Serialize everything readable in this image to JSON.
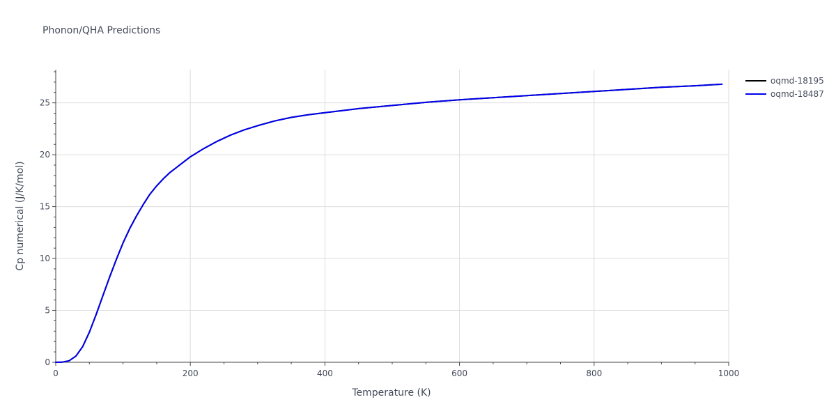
{
  "chart_data": {
    "type": "line",
    "title": "Phonon/QHA Predictions",
    "xlabel": "Temperature (K)",
    "ylabel": "Cp numerical (J/K/mol)",
    "xlim": [
      0,
      1000
    ],
    "ylim": [
      0,
      28.2
    ],
    "xticks": [
      0,
      200,
      400,
      600,
      800,
      1000
    ],
    "yticks": [
      0,
      5,
      10,
      15,
      20,
      25
    ],
    "grid": true,
    "legend_position": "top-right",
    "x": [
      0,
      10,
      20,
      30,
      40,
      50,
      60,
      70,
      80,
      90,
      100,
      110,
      120,
      130,
      140,
      150,
      160,
      170,
      180,
      190,
      200,
      220,
      240,
      260,
      280,
      300,
      325,
      350,
      375,
      400,
      450,
      500,
      550,
      600,
      650,
      700,
      750,
      800,
      850,
      900,
      950,
      990
    ],
    "series": [
      {
        "name": "oqmd-18195",
        "color": "#000000",
        "values": [
          0,
          0.02,
          0.15,
          0.6,
          1.5,
          2.9,
          4.6,
          6.4,
          8.2,
          9.9,
          11.5,
          12.9,
          14.1,
          15.2,
          16.2,
          17.0,
          17.7,
          18.3,
          18.8,
          19.3,
          19.8,
          20.6,
          21.3,
          21.9,
          22.4,
          22.8,
          23.25,
          23.6,
          23.85,
          24.05,
          24.45,
          24.75,
          25.05,
          25.3,
          25.5,
          25.7,
          25.9,
          26.1,
          26.3,
          26.5,
          26.65,
          26.8
        ]
      },
      {
        "name": "oqmd-18487",
        "color": "#0000ee",
        "values": [
          0,
          0.02,
          0.15,
          0.6,
          1.5,
          2.9,
          4.6,
          6.4,
          8.2,
          9.9,
          11.5,
          12.9,
          14.1,
          15.2,
          16.2,
          17.0,
          17.7,
          18.3,
          18.8,
          19.3,
          19.8,
          20.6,
          21.3,
          21.9,
          22.4,
          22.8,
          23.25,
          23.6,
          23.85,
          24.05,
          24.45,
          24.75,
          25.05,
          25.3,
          25.5,
          25.7,
          25.9,
          26.1,
          26.3,
          26.5,
          26.65,
          26.8
        ]
      }
    ]
  }
}
